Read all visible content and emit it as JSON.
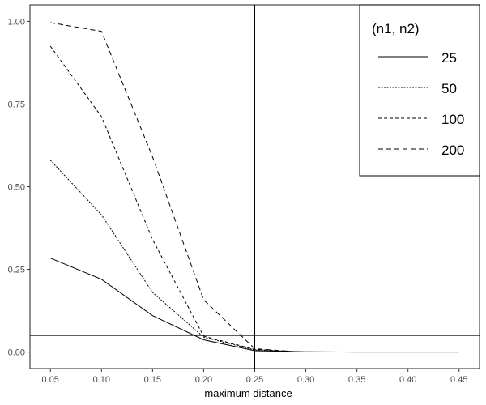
{
  "chart_data": {
    "type": "line",
    "xlabel": "maximum distance",
    "ylabel": "",
    "xlim": [
      0.03,
      0.47
    ],
    "ylim": [
      -0.05,
      1.05
    ],
    "x_ticks": [
      "0.05",
      "0.10",
      "0.15",
      "0.20",
      "0.25",
      "0.30",
      "0.35",
      "0.40",
      "0.45"
    ],
    "y_ticks": [
      "0.00",
      "0.25",
      "0.50",
      "0.75",
      "1.00"
    ],
    "grid": false,
    "reference_lines": {
      "vertical_x": 0.25,
      "horizontal_y": 0.05
    },
    "legend": {
      "title": "(n1, n2)",
      "placement": "top-right"
    },
    "series": [
      {
        "name": "25",
        "dash": "solid",
        "points": [
          [
            0.05,
            0.284
          ],
          [
            0.1,
            0.22
          ],
          [
            0.15,
            0.11
          ],
          [
            0.2,
            0.037
          ],
          [
            0.25,
            0.004
          ],
          [
            0.3,
            0.001
          ],
          [
            0.35,
            0.0
          ],
          [
            0.4,
            0.0
          ],
          [
            0.45,
            0.0
          ]
        ]
      },
      {
        "name": "50",
        "dash": "dotted",
        "points": [
          [
            0.05,
            0.58
          ],
          [
            0.1,
            0.415
          ],
          [
            0.15,
            0.18
          ],
          [
            0.2,
            0.045
          ],
          [
            0.25,
            0.006
          ],
          [
            0.29,
            0.001
          ]
        ]
      },
      {
        "name": "100",
        "dash": "dashed",
        "points": [
          [
            0.05,
            0.925
          ],
          [
            0.1,
            0.712
          ],
          [
            0.15,
            0.34
          ],
          [
            0.2,
            0.048
          ],
          [
            0.25,
            0.008
          ],
          [
            0.29,
            0.001
          ]
        ]
      },
      {
        "name": "200",
        "dash": "longdash",
        "points": [
          [
            0.05,
            0.996
          ],
          [
            0.1,
            0.97
          ],
          [
            0.15,
            0.59
          ],
          [
            0.2,
            0.158
          ],
          [
            0.25,
            0.01
          ],
          [
            0.29,
            0.001
          ]
        ]
      }
    ]
  }
}
